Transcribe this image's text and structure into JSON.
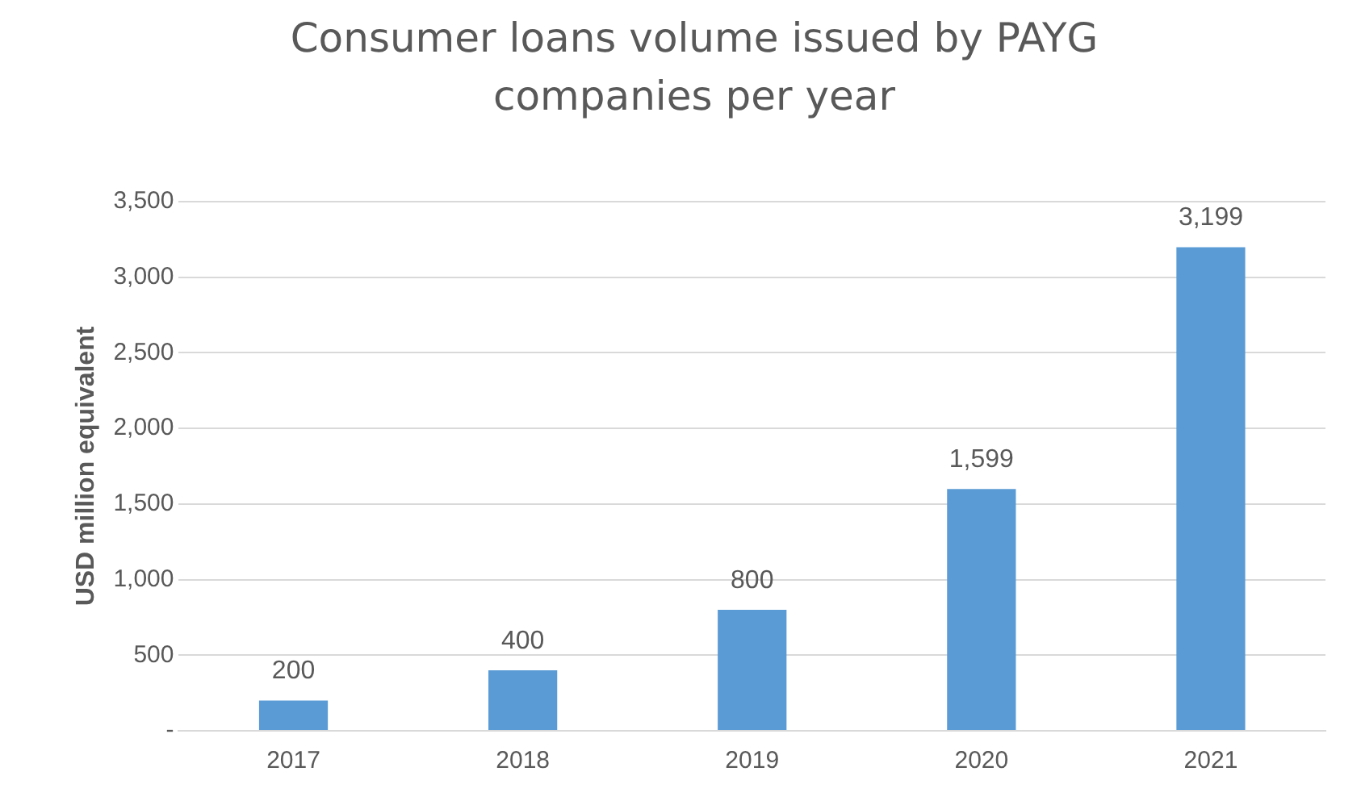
{
  "chart_data": {
    "type": "bar",
    "title": "Consumer loans volume issued by PAYG companies per year",
    "ylabel": "USD million equivalent",
    "categories": [
      "2017",
      "2018",
      "2019",
      "2020",
      "2021"
    ],
    "values": [
      200,
      400,
      800,
      1599,
      3199
    ],
    "value_labels": [
      "200",
      "400",
      "800",
      "1,599",
      "3,199"
    ],
    "color": "#5b9bd5",
    "ylim": [
      0,
      3500
    ],
    "yticks": [
      {
        "value": 0,
        "label": "-"
      },
      {
        "value": 500,
        "label": "500"
      },
      {
        "value": 1000,
        "label": "1,000"
      },
      {
        "value": 1500,
        "label": "1,500"
      },
      {
        "value": 2000,
        "label": "2,000"
      },
      {
        "value": 2500,
        "label": "2,500"
      },
      {
        "value": 3000,
        "label": "3,000"
      },
      {
        "value": 3500,
        "label": "3,500"
      }
    ],
    "grid": "y",
    "legend": false
  }
}
